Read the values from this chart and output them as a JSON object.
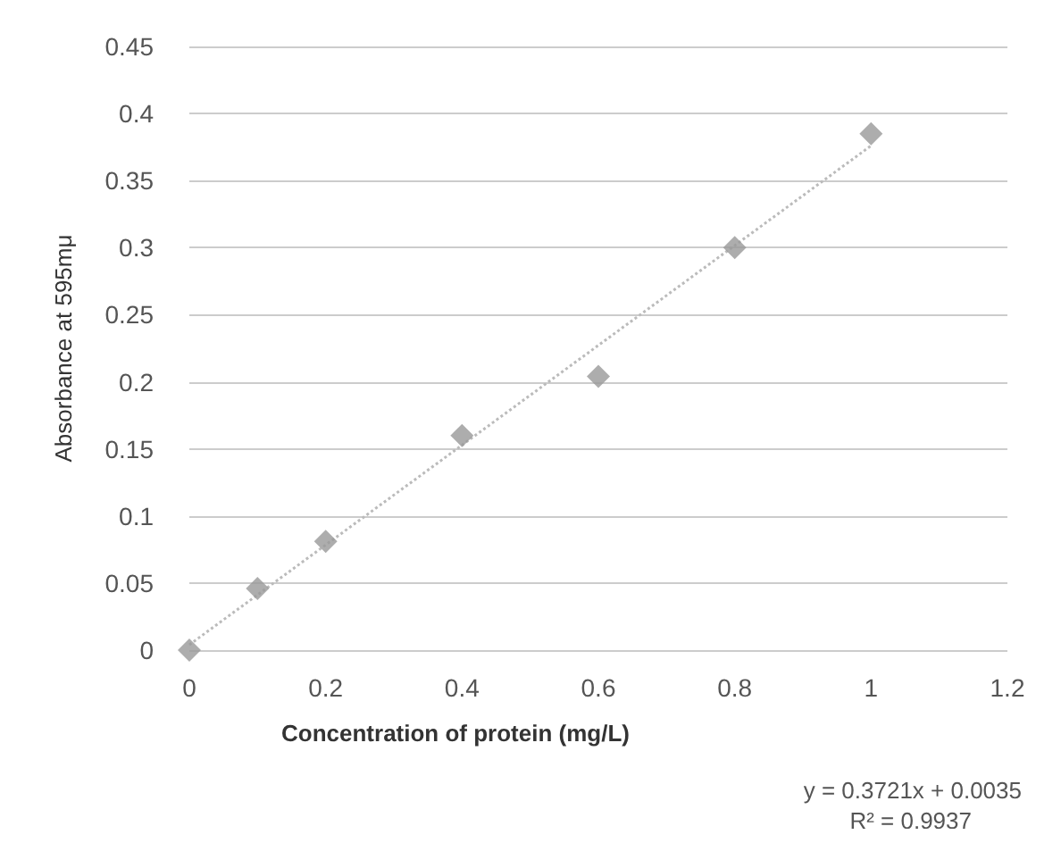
{
  "chart_data": {
    "type": "scatter",
    "xlabel": "Concentration of protein (mg/L)",
    "ylabel": "Absorbance at 595mμ",
    "x": [
      0,
      0.1,
      0.2,
      0.4,
      0.6,
      0.8,
      1
    ],
    "series": [
      {
        "color": "#999999",
        "values": [
          0,
          0.046,
          0.081,
          0.16,
          0.204,
          0.3,
          0.385
        ],
        "marker": "diamond"
      },
      {
        "type": "line",
        "color": "#bbbbbb",
        "x": [
          0,
          1
        ],
        "values": [
          0.004,
          0.376
        ],
        "marker": "none",
        "line_style": "dotted"
      }
    ],
    "annotations": [
      "y = 0.3721x + 0.0035",
      "R² = 0.9937"
    ],
    "xlim": [
      0,
      1.2
    ],
    "xticks": [
      0,
      0.2,
      0.4,
      0.6,
      0.8,
      1,
      1.2
    ],
    "ylim": [
      0,
      0.45
    ],
    "yticks": [
      0,
      0.05,
      0.1,
      0.15,
      0.2,
      0.25,
      0.3,
      0.35,
      0.4,
      0.45
    ],
    "grid": "y"
  }
}
